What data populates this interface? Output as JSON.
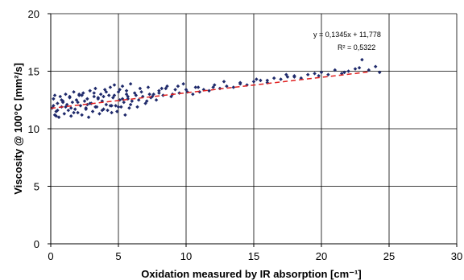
{
  "chart_data": {
    "type": "scatter",
    "xlabel": "Oxidation measured by IR absorption [cm⁻¹]",
    "ylabel": "Viscosity @ 100°C [mm²/s]",
    "xlim": [
      0,
      30
    ],
    "ylim": [
      0,
      20
    ],
    "xticks": [
      0,
      5,
      10,
      15,
      20,
      25,
      30
    ],
    "yticks": [
      0,
      5,
      10,
      15,
      20
    ],
    "grid": true,
    "colors": {
      "points": "#1f2a6b",
      "trendline": "#e02020",
      "axis": "#000000",
      "grid": "#000000"
    },
    "trendline": {
      "slope": 0.1345,
      "intercept": 11.778,
      "style": "dashed"
    },
    "annotations": {
      "equation": "y = 0,1345x + 11,778",
      "r2": "R² = 0,5322"
    },
    "series": [
      {
        "x": [
          0.1,
          0.2,
          0.3,
          0.3,
          0.4,
          0.5,
          0.6,
          0.7,
          0.8,
          0.9,
          1.0,
          1.1,
          1.2,
          1.3,
          1.4,
          1.5,
          1.6,
          1.7,
          1.8,
          1.9,
          2.0,
          2.1,
          2.2,
          2.3,
          2.4,
          2.5,
          2.6,
          2.7,
          2.8,
          2.9,
          3.0,
          3.1,
          3.2,
          3.3,
          3.4,
          3.5,
          3.6,
          3.7,
          3.8,
          3.9,
          4.0,
          4.1,
          4.2,
          4.3,
          4.4,
          4.5,
          4.6,
          4.7,
          4.8,
          4.9,
          5.0,
          5.1,
          5.2,
          5.3,
          5.4,
          5.5,
          5.6,
          5.7,
          5.8,
          5.9,
          6.0,
          6.2,
          6.4,
          6.6,
          6.8,
          7.0,
          7.2,
          7.4,
          7.6,
          7.8,
          8.0,
          8.3,
          8.6,
          8.9,
          9.2,
          9.5,
          9.8,
          10.1,
          10.5,
          10.9,
          11.3,
          11.7,
          12.1,
          12.5,
          13.0,
          13.5,
          14.0,
          14.5,
          15.0,
          15.5,
          16.0,
          16.5,
          17.0,
          17.5,
          18.0,
          18.5,
          19.0,
          19.5,
          20.0,
          20.5,
          21.0,
          21.5,
          22.0,
          22.5,
          23.0,
          23.5,
          24.0,
          24.3,
          0.2,
          0.5,
          0.8,
          1.1,
          1.4,
          1.7,
          2.0,
          2.3,
          2.6,
          2.9,
          3.2,
          3.5,
          3.8,
          4.1,
          4.4,
          4.7,
          5.0,
          5.3,
          5.6,
          5.9,
          6.3,
          6.7,
          7.1,
          7.5,
          8.0,
          8.5,
          9.0,
          10.0,
          11.0,
          12.0,
          14.0,
          16.0,
          18.0,
          22.8,
          0.4,
          0.9,
          1.5,
          2.1,
          2.7,
          3.3,
          3.9,
          4.5,
          5.1,
          5.7,
          6.5,
          7.3,
          8.2,
          9.4,
          10.7,
          12.8,
          15.2,
          17.4,
          19.8,
          21.7
        ],
        "y": [
          11.8,
          12.6,
          11.2,
          12.9,
          11.5,
          12.2,
          11.0,
          12.8,
          11.9,
          12.4,
          11.3,
          13.0,
          12.1,
          11.6,
          12.7,
          11.1,
          12.3,
          13.2,
          11.7,
          12.5,
          11.4,
          12.9,
          12.0,
          11.2,
          13.1,
          12.4,
          11.8,
          12.6,
          11.0,
          13.3,
          12.2,
          11.5,
          12.8,
          13.5,
          11.9,
          12.6,
          11.3,
          13.0,
          12.4,
          11.7,
          13.4,
          12.1,
          11.6,
          12.9,
          13.6,
          11.4,
          12.7,
          13.8,
          12.0,
          11.5,
          13.2,
          12.5,
          11.9,
          13.7,
          12.3,
          11.2,
          13.0,
          12.6,
          11.8,
          13.9,
          12.4,
          13.1,
          11.9,
          13.5,
          12.8,
          12.2,
          13.6,
          12.7,
          13.0,
          12.5,
          13.3,
          12.9,
          13.7,
          12.8,
          13.4,
          13.1,
          13.9,
          13.2,
          13.0,
          13.6,
          13.4,
          13.3,
          13.8,
          13.5,
          13.7,
          13.6,
          14.0,
          13.8,
          14.1,
          14.2,
          14.0,
          14.4,
          14.3,
          14.5,
          14.6,
          14.4,
          14.7,
          14.8,
          14.9,
          14.7,
          15.1,
          14.8,
          15.0,
          15.2,
          16.0,
          15.1,
          15.4,
          14.9,
          12.0,
          11.6,
          12.5,
          11.9,
          12.8,
          11.4,
          12.3,
          12.9,
          11.7,
          12.2,
          13.1,
          12.7,
          11.6,
          13.2,
          12.0,
          12.9,
          11.9,
          12.6,
          13.3,
          12.1,
          12.9,
          13.2,
          12.4,
          12.8,
          13.1,
          13.5,
          13.0,
          13.4,
          13.2,
          13.6,
          13.9,
          14.2,
          14.5,
          15.3,
          11.1,
          12.3,
          11.8,
          13.0,
          12.1,
          11.9,
          12.8,
          12.0,
          13.4,
          12.8,
          12.5,
          13.0,
          13.5,
          13.7,
          13.6,
          14.1,
          14.3,
          14.7,
          14.6,
          14.9
        ]
      }
    ]
  }
}
